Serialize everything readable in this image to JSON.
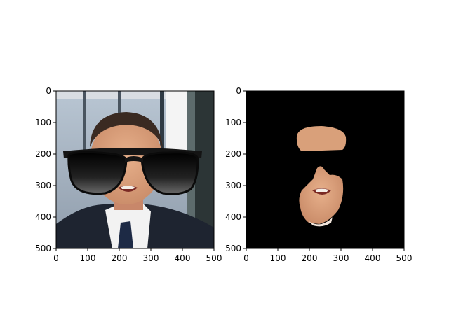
{
  "panels": [
    {
      "title": "",
      "description": "photo with sunglasses overlay",
      "x_ticks": [
        "0",
        "100",
        "200",
        "300",
        "400",
        "500"
      ],
      "y_ticks": [
        "0",
        "100",
        "200",
        "300",
        "400",
        "500"
      ]
    },
    {
      "title": "",
      "description": "segmentation mask showing visible skin regions",
      "x_ticks": [
        "0",
        "100",
        "200",
        "300",
        "400",
        "500"
      ],
      "y_ticks": [
        "0",
        "100",
        "200",
        "300",
        "400",
        "500"
      ]
    }
  ],
  "colors": {
    "background": "#ffffff",
    "mask_background": "#000000",
    "skin": "#d9a07a",
    "suit": "#1e2430",
    "shirt": "#f2f2f2",
    "tie": "#1d2a45",
    "hair": "#3a2a22",
    "sunglasses": "#141414"
  }
}
